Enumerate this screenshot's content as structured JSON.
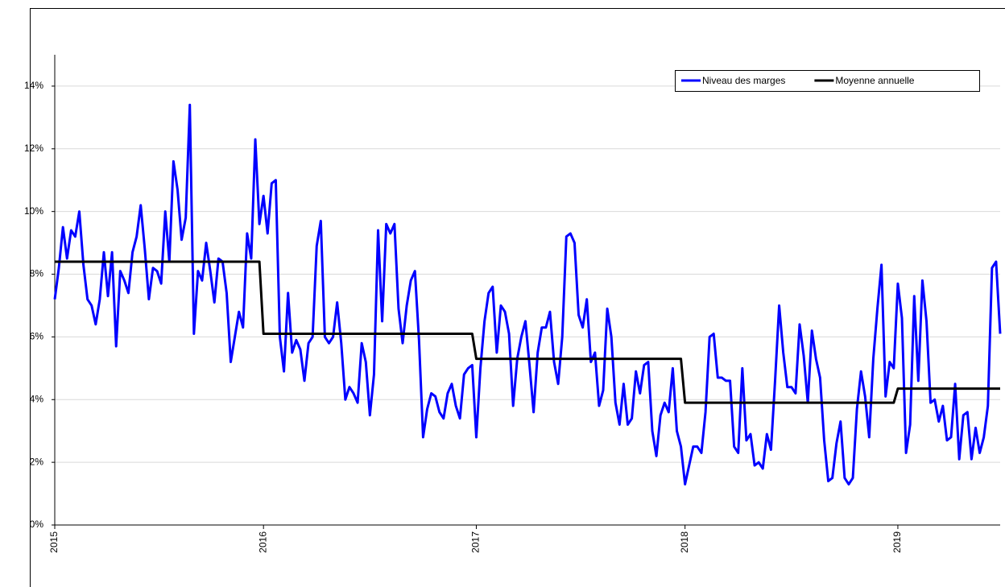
{
  "chart_data": {
    "type": "line",
    "categories": [
      "2015",
      null,
      null,
      null,
      null,
      null,
      null,
      null,
      null,
      null,
      null,
      null,
      null,
      null,
      null,
      null,
      null,
      null,
      null,
      null,
      null,
      null,
      null,
      null,
      null,
      null,
      null,
      null,
      null,
      null,
      null,
      null,
      null,
      null,
      null,
      null,
      null,
      null,
      null,
      null,
      null,
      null,
      null,
      null,
      null,
      null,
      null,
      null,
      null,
      null,
      null,
      "2016",
      null,
      null,
      null,
      null,
      null,
      null,
      null,
      null,
      null,
      null,
      null,
      null,
      null,
      null,
      null,
      null,
      null,
      null,
      null,
      null,
      null,
      null,
      null,
      null,
      null,
      null,
      null,
      null,
      null,
      null,
      null,
      null,
      null,
      null,
      null,
      null,
      null,
      null,
      null,
      null,
      null,
      null,
      null,
      null,
      null,
      null,
      null,
      null,
      null,
      null,
      null,
      "2017",
      null,
      null,
      null,
      null,
      null,
      null,
      null,
      null,
      null,
      null,
      null,
      null,
      null,
      null,
      null,
      null,
      null,
      null,
      null,
      null,
      null,
      null,
      null,
      null,
      null,
      null,
      null,
      null,
      null,
      null,
      null,
      null,
      null,
      null,
      null,
      null,
      null,
      null,
      null,
      null,
      null,
      null,
      null,
      null,
      null,
      null,
      null,
      null,
      null,
      null,
      "2018",
      null,
      null,
      null,
      null,
      null,
      null,
      null,
      null,
      null,
      null,
      null,
      null,
      null,
      null,
      null,
      null,
      null,
      null,
      null,
      null,
      null,
      null,
      null,
      null,
      null,
      null,
      null,
      null,
      null,
      null,
      null,
      null,
      null,
      null,
      null,
      null,
      null,
      null,
      null,
      null,
      null,
      null,
      null,
      null,
      null,
      null,
      null,
      null,
      null,
      null,
      null,
      "2019",
      null,
      null,
      null,
      null,
      null,
      null,
      null,
      null,
      null,
      null,
      null,
      null,
      null,
      null,
      null,
      null,
      null,
      null,
      null,
      null,
      null,
      null,
      null,
      null,
      null
    ],
    "series": [
      {
        "name": "Niveau des marges",
        "color": "#0000ff",
        "values": [
          7.2,
          8.2,
          9.5,
          8.5,
          9.4,
          9.2,
          10.0,
          8.3,
          7.2,
          7.0,
          6.4,
          7.2,
          8.7,
          7.3,
          8.7,
          5.7,
          8.1,
          7.8,
          7.4,
          8.7,
          9.2,
          10.2,
          8.8,
          7.2,
          8.2,
          8.1,
          7.7,
          10.0,
          8.4,
          11.6,
          10.7,
          9.1,
          9.8,
          13.4,
          6.1,
          8.1,
          7.8,
          9.0,
          8.1,
          7.1,
          8.5,
          8.4,
          7.4,
          5.2,
          6.0,
          6.8,
          6.3,
          9.3,
          8.5,
          12.3,
          9.6,
          10.5,
          9.3,
          10.9,
          11.0,
          6.0,
          4.9,
          7.4,
          5.5,
          5.9,
          5.6,
          4.6,
          5.8,
          6.0,
          8.9,
          9.7,
          6.0,
          5.8,
          6.0,
          7.1,
          5.8,
          4.0,
          4.4,
          4.2,
          3.9,
          5.8,
          5.2,
          3.5,
          4.8,
          9.4,
          6.5,
          9.6,
          9.3,
          9.6,
          6.9,
          5.8,
          7.0,
          7.8,
          8.1,
          5.9,
          2.8,
          3.7,
          4.2,
          4.1,
          3.6,
          3.4,
          4.2,
          4.5,
          3.8,
          3.4,
          4.8,
          5.0,
          5.1,
          2.8,
          5.0,
          6.5,
          7.4,
          7.6,
          5.5,
          7.0,
          6.8,
          6.1,
          3.8,
          5.3,
          6.0,
          6.5,
          5.1,
          3.6,
          5.5,
          6.3,
          6.3,
          6.8,
          5.2,
          4.5,
          6.0,
          9.2,
          9.3,
          9.0,
          6.7,
          6.3,
          7.2,
          5.2,
          5.5,
          3.8,
          4.3,
          6.9,
          6.0,
          3.9,
          3.2,
          4.5,
          3.2,
          3.4,
          4.9,
          4.2,
          5.1,
          5.2,
          3.0,
          2.2,
          3.5,
          3.9,
          3.6,
          5.0,
          3.0,
          2.5,
          1.3,
          1.9,
          2.5,
          2.5,
          2.3,
          3.6,
          6.0,
          6.1,
          4.7,
          4.7,
          4.6,
          4.6,
          2.5,
          2.3,
          5.0,
          2.7,
          2.9,
          1.9,
          2.0,
          1.8,
          2.9,
          2.4,
          4.6,
          7.0,
          5.5,
          4.4,
          4.4,
          4.2,
          6.4,
          5.4,
          3.9,
          6.2,
          5.3,
          4.7,
          2.7,
          1.4,
          1.5,
          2.6,
          3.3,
          1.5,
          1.3,
          1.5,
          3.7,
          4.9,
          4.1,
          2.8,
          5.3,
          6.9,
          8.3,
          4.1,
          5.2,
          5.0,
          7.7,
          6.6,
          2.3,
          3.2,
          7.3,
          4.6,
          7.8,
          6.5,
          3.9,
          4.0,
          3.3,
          3.8,
          2.7,
          2.8,
          4.5,
          2.1,
          3.5,
          3.6,
          2.1,
          3.1,
          2.3,
          2.8,
          3.8,
          8.2,
          8.4,
          6.1
        ]
      },
      {
        "name": "Moyenne annuelle",
        "color": "#000000",
        "values": [
          8.4,
          8.4,
          8.4,
          8.4,
          8.4,
          8.4,
          8.4,
          8.4,
          8.4,
          8.4,
          8.4,
          8.4,
          8.4,
          8.4,
          8.4,
          8.4,
          8.4,
          8.4,
          8.4,
          8.4,
          8.4,
          8.4,
          8.4,
          8.4,
          8.4,
          8.4,
          8.4,
          8.4,
          8.4,
          8.4,
          8.4,
          8.4,
          8.4,
          8.4,
          8.4,
          8.4,
          8.4,
          8.4,
          8.4,
          8.4,
          8.4,
          8.4,
          8.4,
          8.4,
          8.4,
          8.4,
          8.4,
          8.4,
          8.4,
          8.4,
          8.4,
          6.1,
          6.1,
          6.1,
          6.1,
          6.1,
          6.1,
          6.1,
          6.1,
          6.1,
          6.1,
          6.1,
          6.1,
          6.1,
          6.1,
          6.1,
          6.1,
          6.1,
          6.1,
          6.1,
          6.1,
          6.1,
          6.1,
          6.1,
          6.1,
          6.1,
          6.1,
          6.1,
          6.1,
          6.1,
          6.1,
          6.1,
          6.1,
          6.1,
          6.1,
          6.1,
          6.1,
          6.1,
          6.1,
          6.1,
          6.1,
          6.1,
          6.1,
          6.1,
          6.1,
          6.1,
          6.1,
          6.1,
          6.1,
          6.1,
          6.1,
          6.1,
          6.1,
          5.3,
          5.3,
          5.3,
          5.3,
          5.3,
          5.3,
          5.3,
          5.3,
          5.3,
          5.3,
          5.3,
          5.3,
          5.3,
          5.3,
          5.3,
          5.3,
          5.3,
          5.3,
          5.3,
          5.3,
          5.3,
          5.3,
          5.3,
          5.3,
          5.3,
          5.3,
          5.3,
          5.3,
          5.3,
          5.3,
          5.3,
          5.3,
          5.3,
          5.3,
          5.3,
          5.3,
          5.3,
          5.3,
          5.3,
          5.3,
          5.3,
          5.3,
          5.3,
          5.3,
          5.3,
          5.3,
          5.3,
          5.3,
          5.3,
          5.3,
          5.3,
          3.9,
          3.9,
          3.9,
          3.9,
          3.9,
          3.9,
          3.9,
          3.9,
          3.9,
          3.9,
          3.9,
          3.9,
          3.9,
          3.9,
          3.9,
          3.9,
          3.9,
          3.9,
          3.9,
          3.9,
          3.9,
          3.9,
          3.9,
          3.9,
          3.9,
          3.9,
          3.9,
          3.9,
          3.9,
          3.9,
          3.9,
          3.9,
          3.9,
          3.9,
          3.9,
          3.9,
          3.9,
          3.9,
          3.9,
          3.9,
          3.9,
          3.9,
          3.9,
          3.9,
          3.9,
          3.9,
          3.9,
          3.9,
          3.9,
          3.9,
          3.9,
          3.9,
          4.35,
          4.35,
          4.35,
          4.35,
          4.35,
          4.35,
          4.35,
          4.35,
          4.35,
          4.35,
          4.35,
          4.35,
          4.35,
          4.35,
          4.35,
          4.35,
          4.35,
          4.35,
          4.35,
          4.35,
          4.35,
          4.35,
          4.35,
          4.35,
          4.35,
          4.35
        ]
      }
    ],
    "ylim": [
      0,
      15
    ],
    "yticks": [
      {
        "value": 0,
        "label": "0%"
      },
      {
        "value": 2,
        "label": "2%"
      },
      {
        "value": 4,
        "label": "4%"
      },
      {
        "value": 6,
        "label": "6%"
      },
      {
        "value": 8,
        "label": "8%"
      },
      {
        "value": 10,
        "label": "10%"
      },
      {
        "value": 12,
        "label": "12%"
      },
      {
        "value": 14,
        "label": "14%"
      }
    ],
    "grid": true,
    "legend": "top-right"
  }
}
